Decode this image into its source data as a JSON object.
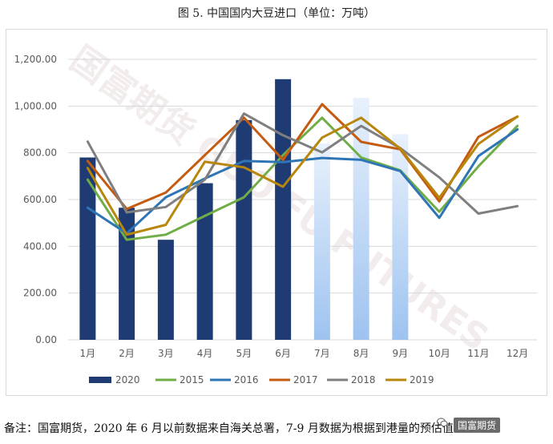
{
  "title": "图 5. 中国国内大豆进口（单位：万吨）",
  "footnote": "备注：国富期货，2020 年 6 月以前数据来自海关总署，7-9 月数据为根据到港量的预估值。",
  "watermark": "国富期货 GUO FU FUTURES",
  "brand_label": "国富期货",
  "brand_icon": "wechat-icon",
  "chart_data": {
    "type": "bar+line",
    "categories": [
      "1月",
      "2月",
      "3月",
      "4月",
      "5月",
      "6月",
      "7月",
      "8月",
      "9月",
      "10月",
      "11月",
      "12月"
    ],
    "ylim": [
      0,
      1200
    ],
    "yticks": [
      "0.00",
      "200.00",
      "400.00",
      "600.00",
      "800.00",
      "1,000.00",
      "1,200.00"
    ],
    "grid": true,
    "legend_position": "bottom",
    "bars": {
      "name": "2020",
      "color": "#1f3b73",
      "estimate_color": "#9ec3f0",
      "values": [
        780,
        565,
        428,
        670,
        940,
        1115,
        840,
        1035,
        880,
        null,
        null,
        null
      ],
      "estimate_from_index": 6
    },
    "series": [
      {
        "name": "2015",
        "color": "#70ad47",
        "values": [
          685,
          428,
          450,
          530,
          610,
          790,
          950,
          780,
          725,
          548,
          742,
          915
        ]
      },
      {
        "name": "2016",
        "color": "#2e75b6",
        "values": [
          565,
          455,
          610,
          690,
          765,
          760,
          778,
          770,
          722,
          522,
          786,
          900
        ]
      },
      {
        "name": "2017",
        "color": "#c55a11",
        "values": [
          765,
          560,
          630,
          790,
          950,
          770,
          1008,
          847,
          815,
          592,
          868,
          955
        ]
      },
      {
        "name": "2018",
        "color": "#7f7f7f",
        "values": [
          848,
          545,
          568,
          685,
          968,
          875,
          802,
          915,
          820,
          695,
          540,
          572
        ]
      },
      {
        "name": "2019",
        "color": "#b8860b",
        "values": [
          735,
          450,
          492,
          762,
          738,
          655,
          865,
          950,
          818,
          608,
          838,
          955
        ]
      }
    ]
  }
}
